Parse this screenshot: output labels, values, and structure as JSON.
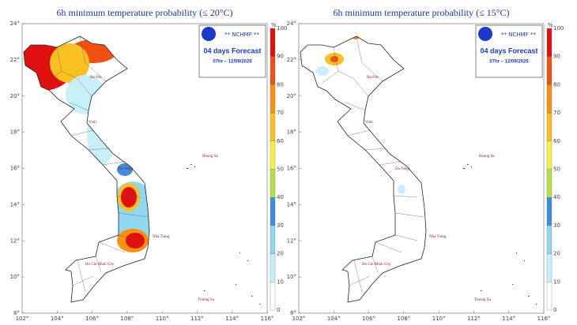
{
  "panels": [
    {
      "title": "6h minimum temperature probability (≤ 20°C)",
      "logo": "** NCHMF **",
      "forecast": "04 days Forecast",
      "date": "07hr – 12/09/2026"
    },
    {
      "title": "6h minimum temperature probability (≤ 15°C)",
      "logo": "** NCHMF **",
      "forecast": "04 days Forecast",
      "date": "07hr – 12/09/2026"
    }
  ],
  "lat_labels": [
    "24°",
    "22°",
    "20°",
    "18°",
    "16°",
    "14°",
    "12°",
    "10°",
    "8°"
  ],
  "lon_labels": [
    "102°",
    "104°",
    "106°",
    "108°",
    "110°",
    "112°",
    "114°",
    "116°"
  ],
  "colorbar": {
    "unit": "%",
    "ticks": [
      "0",
      "10",
      "20",
      "30",
      "40",
      "50",
      "60",
      "70",
      "80",
      "90",
      "100"
    ],
    "colors": [
      "#ffffff",
      "#c8f0f8",
      "#8fd8f0",
      "#3a8fe0",
      "#b8e040",
      "#f8f040",
      "#f8c020",
      "#f89010",
      "#f05010",
      "#e01010"
    ]
  },
  "cities": [
    "Ha Noi",
    "Vinh",
    "Da Nang",
    "Hoang Sa",
    "Nha Trang",
    "Ho Chi Minh City",
    "Truong Sa"
  ]
}
